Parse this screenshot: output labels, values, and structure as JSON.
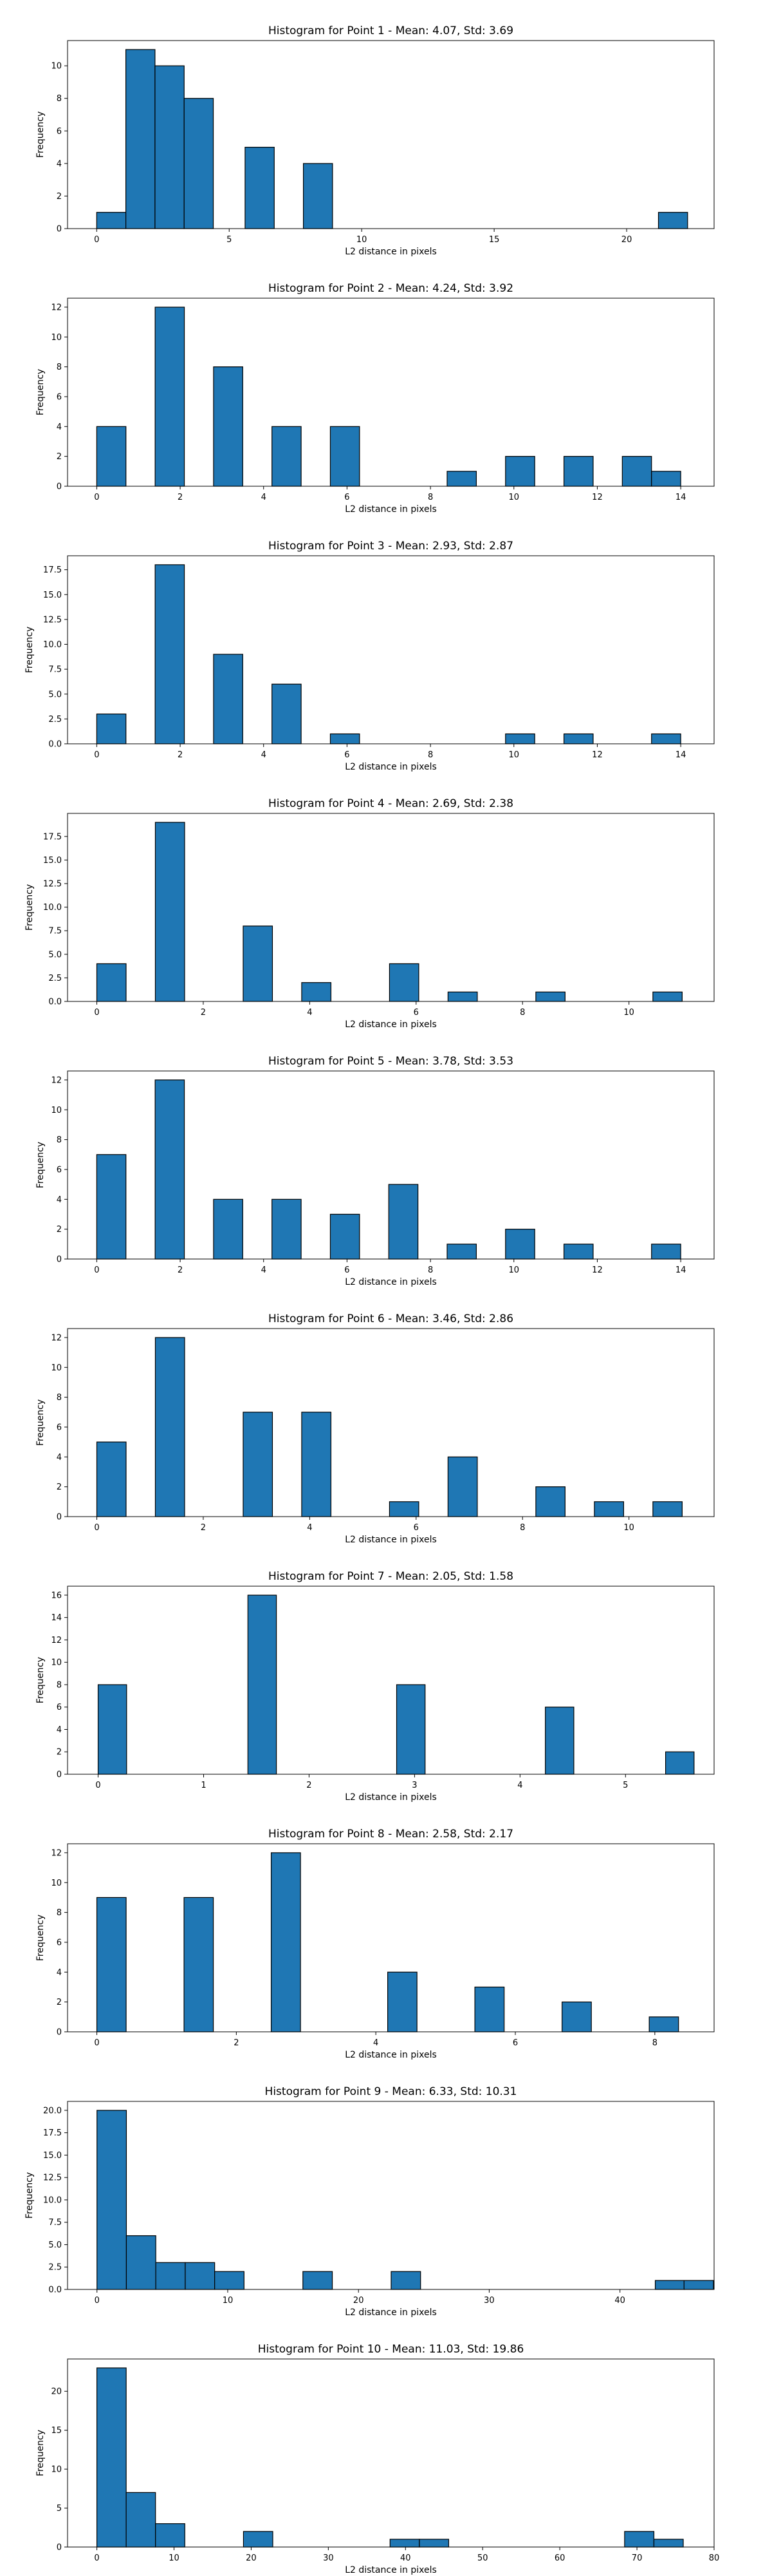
{
  "bar_color": "#1f77b4",
  "chart_data": [
    {
      "type": "bar",
      "title": "Histogram for Point 1 - Mean: 4.07, Std: 3.69",
      "xlabel": "L2 distance in pixels",
      "ylabel": "Frequency",
      "xlim": [
        -1.1,
        23.3
      ],
      "ylim": [
        0,
        11.55
      ],
      "xticks": [
        0,
        5,
        10,
        15,
        20
      ],
      "yticks": [
        0,
        2,
        4,
        6,
        8,
        10
      ],
      "bin_width": 1.1,
      "bins": [
        {
          "x": 0.0,
          "count": 1
        },
        {
          "x": 1.1,
          "count": 11
        },
        {
          "x": 2.2,
          "count": 10
        },
        {
          "x": 3.3,
          "count": 8
        },
        {
          "x": 5.6,
          "count": 5
        },
        {
          "x": 7.8,
          "count": 4
        },
        {
          "x": 21.2,
          "count": 1
        }
      ]
    },
    {
      "type": "bar",
      "title": "Histogram for Point 2 - Mean: 4.24, Std: 3.92",
      "xlabel": "L2 distance in pixels",
      "ylabel": "Frequency",
      "xlim": [
        -0.7,
        14.8
      ],
      "ylim": [
        0,
        12.6
      ],
      "xticks": [
        0,
        2,
        4,
        6,
        8,
        10,
        12,
        14
      ],
      "yticks": [
        0,
        2,
        4,
        6,
        8,
        10,
        12
      ],
      "bin_width": 0.7,
      "bins": [
        {
          "x": 0.0,
          "count": 4
        },
        {
          "x": 1.4,
          "count": 12
        },
        {
          "x": 2.8,
          "count": 8
        },
        {
          "x": 4.2,
          "count": 4
        },
        {
          "x": 5.6,
          "count": 4
        },
        {
          "x": 8.4,
          "count": 1
        },
        {
          "x": 9.8,
          "count": 2
        },
        {
          "x": 11.2,
          "count": 2
        },
        {
          "x": 12.6,
          "count": 2
        },
        {
          "x": 13.3,
          "count": 1
        }
      ]
    },
    {
      "type": "bar",
      "title": "Histogram for Point 3 - Mean: 2.93, Std: 2.87",
      "xlabel": "L2 distance in pixels",
      "ylabel": "Frequency",
      "xlim": [
        -0.7,
        14.8
      ],
      "ylim": [
        0,
        18.9
      ],
      "xticks": [
        0,
        2,
        4,
        6,
        8,
        10,
        12,
        14
      ],
      "yticks": [
        0.0,
        2.5,
        5.0,
        7.5,
        10.0,
        12.5,
        15.0,
        17.5
      ],
      "bin_width": 0.7,
      "bins": [
        {
          "x": 0.0,
          "count": 3
        },
        {
          "x": 1.4,
          "count": 18
        },
        {
          "x": 2.8,
          "count": 9
        },
        {
          "x": 4.2,
          "count": 6
        },
        {
          "x": 5.6,
          "count": 1
        },
        {
          "x": 9.8,
          "count": 1
        },
        {
          "x": 11.2,
          "count": 1
        },
        {
          "x": 13.3,
          "count": 1
        }
      ]
    },
    {
      "type": "bar",
      "title": "Histogram for Point 4 - Mean: 2.69, Std: 2.38",
      "xlabel": "L2 distance in pixels",
      "ylabel": "Frequency",
      "xlim": [
        -0.55,
        11.6
      ],
      "ylim": [
        0,
        19.95
      ],
      "xticks": [
        0,
        2,
        4,
        6,
        8,
        10
      ],
      "yticks": [
        0.0,
        2.5,
        5.0,
        7.5,
        10.0,
        12.5,
        15.0,
        17.5
      ],
      "bin_width": 0.55,
      "bins": [
        {
          "x": 0.0,
          "count": 4
        },
        {
          "x": 1.1,
          "count": 19
        },
        {
          "x": 2.75,
          "count": 8
        },
        {
          "x": 3.85,
          "count": 2
        },
        {
          "x": 5.5,
          "count": 4
        },
        {
          "x": 6.6,
          "count": 1
        },
        {
          "x": 8.25,
          "count": 1
        },
        {
          "x": 10.45,
          "count": 1
        }
      ]
    },
    {
      "type": "bar",
      "title": "Histogram for Point 5 - Mean: 3.78, Std: 3.53",
      "xlabel": "L2 distance in pixels",
      "ylabel": "Frequency",
      "xlim": [
        -0.7,
        14.8
      ],
      "ylim": [
        0,
        12.6
      ],
      "xticks": [
        0,
        2,
        4,
        6,
        8,
        10,
        12,
        14
      ],
      "yticks": [
        0,
        2,
        4,
        6,
        8,
        10,
        12
      ],
      "bin_width": 0.7,
      "bins": [
        {
          "x": 0.0,
          "count": 7
        },
        {
          "x": 1.4,
          "count": 12
        },
        {
          "x": 2.8,
          "count": 4
        },
        {
          "x": 4.2,
          "count": 4
        },
        {
          "x": 5.6,
          "count": 3
        },
        {
          "x": 7.0,
          "count": 5
        },
        {
          "x": 8.4,
          "count": 1
        },
        {
          "x": 9.8,
          "count": 2
        },
        {
          "x": 11.2,
          "count": 1
        },
        {
          "x": 13.3,
          "count": 1
        }
      ]
    },
    {
      "type": "bar",
      "title": "Histogram for Point 6 - Mean: 3.46, Std: 2.86",
      "xlabel": "L2 distance in pixels",
      "ylabel": "Frequency",
      "xlim": [
        -0.55,
        11.6
      ],
      "ylim": [
        0,
        12.6
      ],
      "xticks": [
        0,
        2,
        4,
        6,
        8,
        10
      ],
      "yticks": [
        0,
        2,
        4,
        6,
        8,
        10,
        12
      ],
      "bin_width": 0.55,
      "bins": [
        {
          "x": 0.0,
          "count": 5
        },
        {
          "x": 1.1,
          "count": 12
        },
        {
          "x": 2.75,
          "count": 7
        },
        {
          "x": 3.85,
          "count": 7
        },
        {
          "x": 5.5,
          "count": 1
        },
        {
          "x": 6.6,
          "count": 4
        },
        {
          "x": 8.25,
          "count": 2
        },
        {
          "x": 9.35,
          "count": 1
        },
        {
          "x": 10.45,
          "count": 1
        }
      ]
    },
    {
      "type": "bar",
      "title": "Histogram for Point 7 - Mean: 2.05, Std: 1.58",
      "xlabel": "L2 distance in pixels",
      "ylabel": "Frequency",
      "xlim": [
        -0.29,
        5.84
      ],
      "ylim": [
        0,
        16.8
      ],
      "xticks": [
        0,
        1,
        2,
        3,
        4,
        5
      ],
      "yticks": [
        0,
        2,
        4,
        6,
        8,
        10,
        12,
        14,
        16
      ],
      "bin_width": 0.27,
      "bins": [
        {
          "x": 0.0,
          "count": 8
        },
        {
          "x": 1.42,
          "count": 16
        },
        {
          "x": 2.83,
          "count": 8
        },
        {
          "x": 4.24,
          "count": 6
        },
        {
          "x": 5.38,
          "count": 2
        }
      ]
    },
    {
      "type": "bar",
      "title": "Histogram for Point 8 - Mean: 2.58, Std: 2.17",
      "xlabel": "L2 distance in pixels",
      "ylabel": "Frequency",
      "xlim": [
        -0.42,
        8.85
      ],
      "ylim": [
        0,
        12.6
      ],
      "xticks": [
        0,
        2,
        4,
        6,
        8
      ],
      "yticks": [
        0,
        2,
        4,
        6,
        8,
        10,
        12
      ],
      "bin_width": 0.42,
      "bins": [
        {
          "x": 0.0,
          "count": 9
        },
        {
          "x": 1.25,
          "count": 9
        },
        {
          "x": 2.5,
          "count": 12
        },
        {
          "x": 4.17,
          "count": 4
        },
        {
          "x": 5.42,
          "count": 3
        },
        {
          "x": 6.67,
          "count": 2
        },
        {
          "x": 7.92,
          "count": 1
        }
      ]
    },
    {
      "type": "bar",
      "title": "Histogram for Point 9 - Mean: 6.33, Std: 10.31",
      "xlabel": "L2 distance in pixels",
      "ylabel": "Frequency",
      "xlim": [
        -2.25,
        47.2
      ],
      "ylim": [
        0,
        21.0
      ],
      "xticks": [
        0,
        10,
        20,
        30,
        40
      ],
      "yticks": [
        0.0,
        2.5,
        5.0,
        7.5,
        10.0,
        12.5,
        15.0,
        17.5,
        20.0
      ],
      "bin_width": 2.25,
      "bins": [
        {
          "x": 0.0,
          "count": 20
        },
        {
          "x": 2.25,
          "count": 6
        },
        {
          "x": 4.5,
          "count": 3
        },
        {
          "x": 6.75,
          "count": 3
        },
        {
          "x": 9.0,
          "count": 2
        },
        {
          "x": 15.75,
          "count": 2
        },
        {
          "x": 22.5,
          "count": 2
        },
        {
          "x": 42.7,
          "count": 1
        },
        {
          "x": 44.9,
          "count": 1
        }
      ]
    },
    {
      "type": "bar",
      "title": "Histogram for Point 10 - Mean: 11.03, Std: 19.86",
      "xlabel": "L2 distance in pixels",
      "ylabel": "Frequency",
      "xlim": [
        -3.8,
        80
      ],
      "ylim": [
        0,
        24.15
      ],
      "xticks": [
        0,
        10,
        20,
        30,
        40,
        50,
        60,
        70,
        80
      ],
      "yticks": [
        0,
        5,
        10,
        15,
        20
      ],
      "bin_width": 3.8,
      "bins": [
        {
          "x": 0.0,
          "count": 23
        },
        {
          "x": 3.8,
          "count": 7
        },
        {
          "x": 7.6,
          "count": 3
        },
        {
          "x": 19.0,
          "count": 2
        },
        {
          "x": 38.0,
          "count": 1
        },
        {
          "x": 41.8,
          "count": 1
        },
        {
          "x": 68.4,
          "count": 2
        },
        {
          "x": 72.2,
          "count": 1
        }
      ]
    }
  ]
}
